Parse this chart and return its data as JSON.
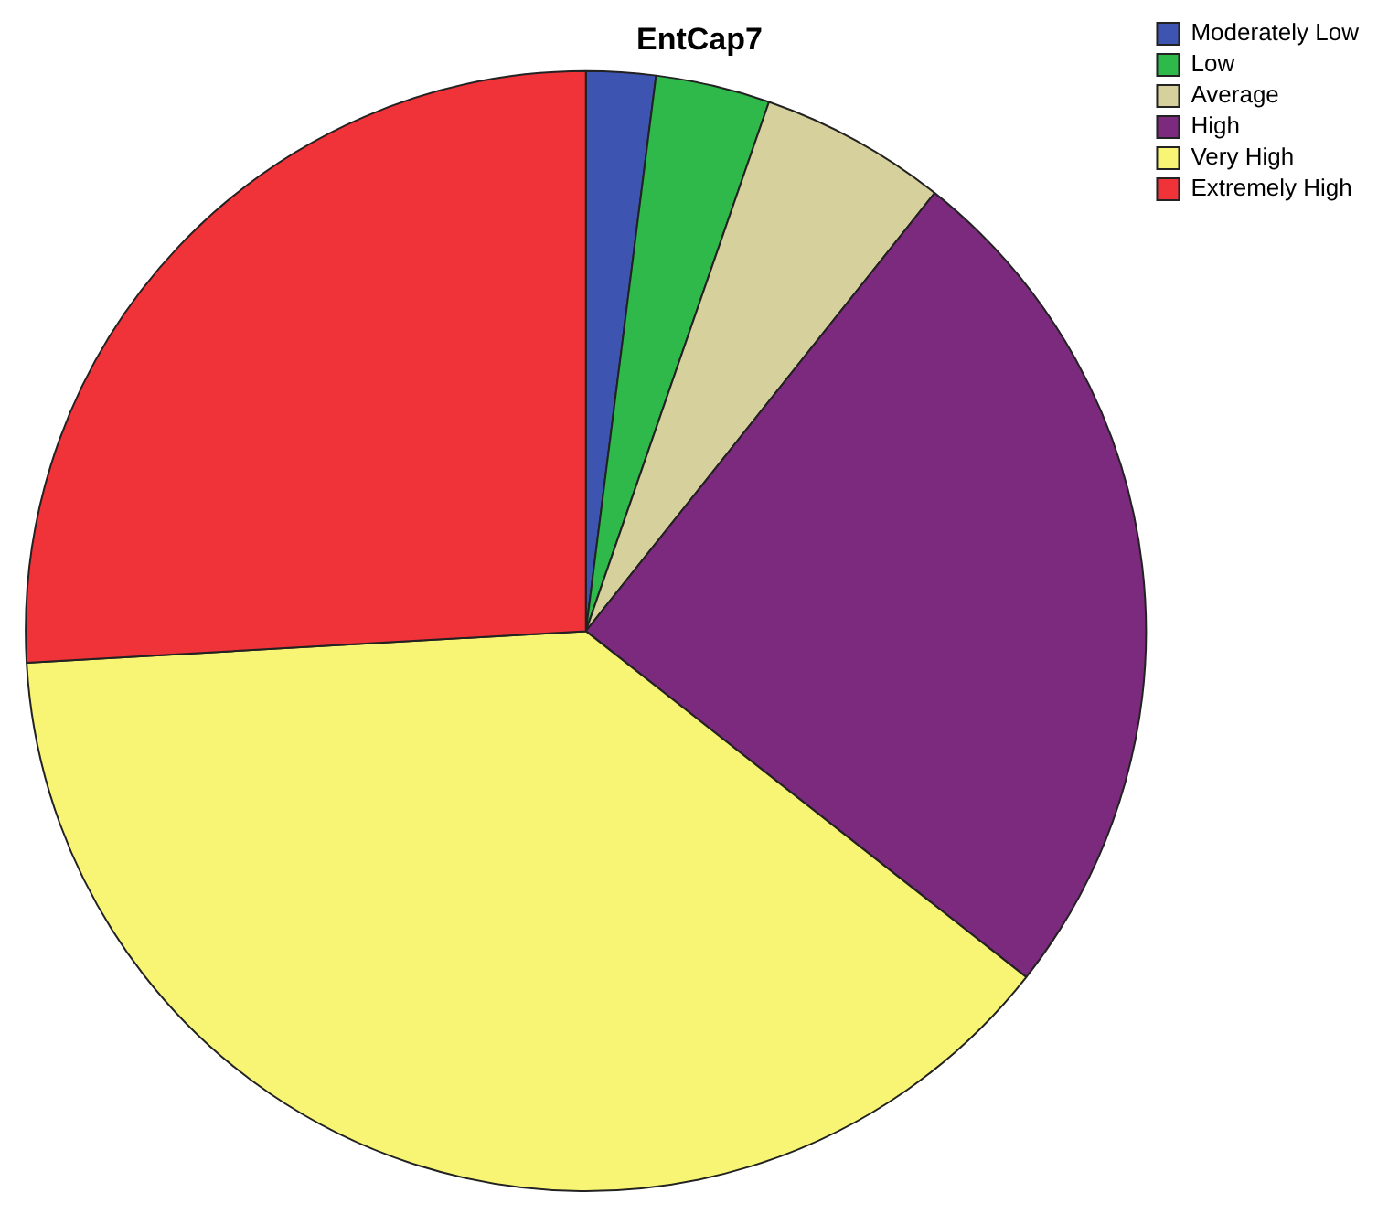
{
  "chart_data": {
    "type": "pie",
    "title": "EntCap7",
    "categories": [
      "Moderately Low",
      "Low",
      "Average",
      "High",
      "Very High",
      "Extremely High"
    ],
    "values": [
      2,
      3.3,
      5.4,
      24.9,
      38.5,
      25.9
    ],
    "colors": [
      "#3d55b0",
      "#2eb94a",
      "#d5d09c",
      "#7b2a7d",
      "#f8f574",
      "#ef3339"
    ],
    "legend": "top right"
  }
}
